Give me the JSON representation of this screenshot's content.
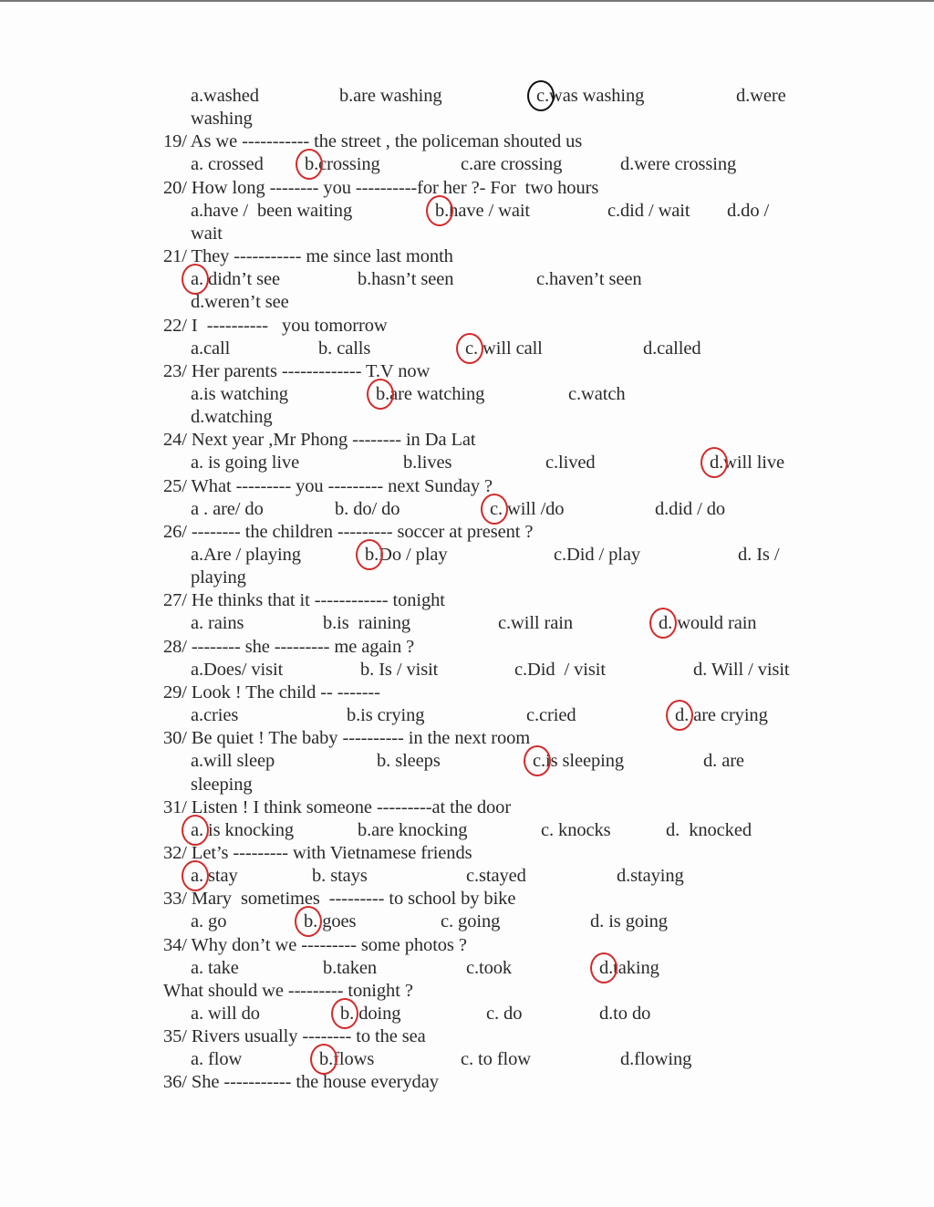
{
  "worksheet": {
    "lines": [
      {
        "kind": "opts",
        "options": [
          "a.washed",
          "b.are washing",
          "c.was washing",
          "d.were"
        ],
        "marked": 2,
        "mark_color": "#111111"
      },
      {
        "kind": "cont",
        "text": "washing"
      },
      {
        "kind": "q",
        "text": "19/ As we ----------- the street , the policeman shouted us"
      },
      {
        "kind": "opts",
        "options": [
          "a. crossed",
          "b.crossing",
          "c.are crossing",
          "d.were crossing"
        ],
        "marked": 1
      },
      {
        "kind": "q",
        "text": "20/ How long -------- you ----------for her ?- For  two hours"
      },
      {
        "kind": "opts",
        "options": [
          "a.have /  been waiting",
          "b.have / wait",
          "c.did / wait",
          "d.do /"
        ],
        "marked": 1
      },
      {
        "kind": "cont",
        "text": "wait"
      },
      {
        "kind": "q",
        "text": "21/ They ----------- me since last month"
      },
      {
        "kind": "opts",
        "options": [
          "a. didn’t see",
          "b.hasn’t seen",
          "c.haven’t seen"
        ],
        "marked": 0
      },
      {
        "kind": "cont",
        "text": "d.weren’t see"
      },
      {
        "kind": "q",
        "text": "22/ I  ----------   you tomorrow"
      },
      {
        "kind": "opts",
        "options": [
          "a.call",
          "b. calls",
          "c. will call",
          "d.called"
        ],
        "marked": 2
      },
      {
        "kind": "q",
        "text": "23/ Her parents ------------- T.V now"
      },
      {
        "kind": "opts",
        "options": [
          "a.is watching",
          "b.are watching",
          "c.watch"
        ],
        "marked": 1
      },
      {
        "kind": "cont",
        "text": "d.watching"
      },
      {
        "kind": "q",
        "text": "24/ Next year ,Mr Phong -------- in Da Lat"
      },
      {
        "kind": "opts",
        "options": [
          "a. is going live",
          "b.lives",
          "c.lived",
          "d.will live"
        ],
        "marked": 3
      },
      {
        "kind": "q",
        "text": "25/ What --------- you --------- next Sunday ?"
      },
      {
        "kind": "opts",
        "options": [
          "a . are/ do",
          "b. do/ do",
          "c. will /do",
          "d.did / do"
        ],
        "marked": 2
      },
      {
        "kind": "q",
        "text": "26/ -------- the children --------- soccer at present ?"
      },
      {
        "kind": "opts",
        "options": [
          "a.Are / playing",
          "b.Do / play",
          "c.Did / play",
          "d. Is /"
        ],
        "marked": 1
      },
      {
        "kind": "cont",
        "text": "playing"
      },
      {
        "kind": "q",
        "text": "27/ He thinks that it ------------ tonight"
      },
      {
        "kind": "opts",
        "options": [
          "a. rains",
          "b.is  raining",
          "c.will rain",
          "d. would rain"
        ],
        "marked": 3
      },
      {
        "kind": "q",
        "text": "28/ -------- she --------- me again ?"
      },
      {
        "kind": "opts",
        "options": [
          "a.Does/ visit",
          "b. Is / visit",
          "c.Did  / visit",
          "d. Will / visit"
        ]
      },
      {
        "kind": "q",
        "text": "29/ Look ! The child -- -------"
      },
      {
        "kind": "opts",
        "options": [
          "a.cries",
          "b.is crying",
          "c.cried",
          "d. are crying"
        ],
        "marked": 3
      },
      {
        "kind": "q",
        "text": "30/ Be quiet ! The baby ---------- in the next room"
      },
      {
        "kind": "opts",
        "options": [
          "a.will sleep",
          "b. sleeps",
          "c.is sleeping",
          "d. are"
        ],
        "marked": 2
      },
      {
        "kind": "cont",
        "text": "sleeping"
      },
      {
        "kind": "q",
        "text": "31/ Listen ! I think someone ---------at the door"
      },
      {
        "kind": "opts",
        "options": [
          "a. is knocking",
          "b.are knocking",
          "c. knocks",
          "d.  knocked"
        ],
        "marked": 0
      },
      {
        "kind": "q",
        "text": "32/ Let’s --------- with Vietnamese friends"
      },
      {
        "kind": "opts",
        "options": [
          "a. stay",
          "b. stays",
          "c.stayed",
          "d.staying"
        ],
        "marked": 0
      },
      {
        "kind": "q",
        "text": "33/ Mary  sometimes  --------- to school by bike"
      },
      {
        "kind": "opts",
        "options": [
          "a. go",
          "b. goes",
          "c. going",
          "d. is going"
        ],
        "marked": 1
      },
      {
        "kind": "q",
        "text": "34/ Why don’t we --------- some photos ?"
      },
      {
        "kind": "opts",
        "options": [
          "a. take",
          "b.taken",
          "c.took",
          "d.taking"
        ],
        "marked": 3
      },
      {
        "kind": "q",
        "text": "What should we --------- tonight ?"
      },
      {
        "kind": "opts",
        "options": [
          "a. will do",
          "b. doing",
          "c. do",
          "d.to do"
        ],
        "marked": 1
      },
      {
        "kind": "q",
        "text": "35/ Rivers usually -------- to the sea"
      },
      {
        "kind": "opts",
        "options": [
          "a. flow",
          "b.flows",
          "c. to flow",
          "d.flowing"
        ],
        "marked": 1
      },
      {
        "kind": "q",
        "text": "36/ She ----------- the house everyday"
      }
    ],
    "mark_color": "#d42a2a"
  }
}
